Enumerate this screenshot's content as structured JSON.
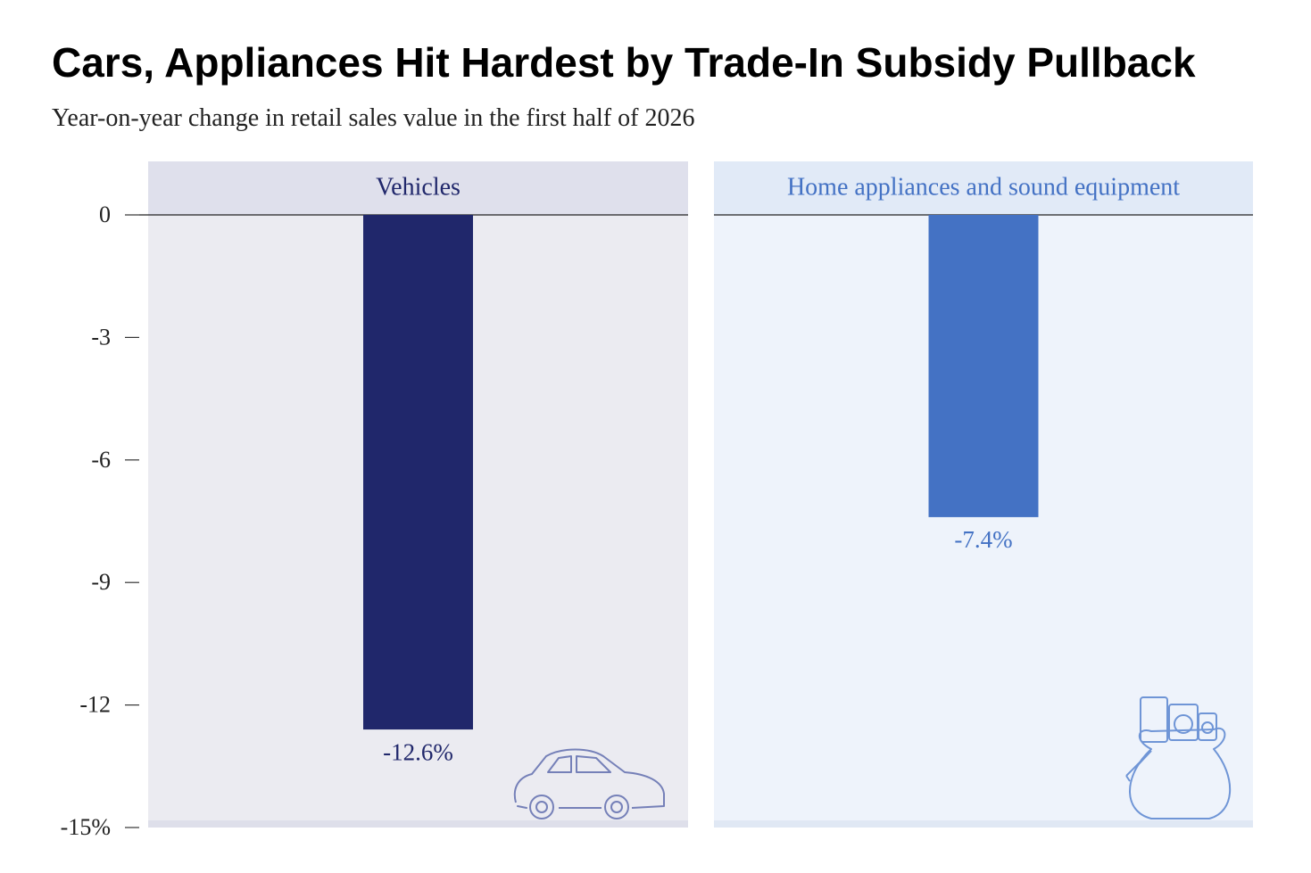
{
  "chart_data": {
    "type": "bar",
    "title": "Cars, Appliances Hit Hardest by Trade-In Subsidy Pullback",
    "subtitle": "Year-on-year change in retail sales value in the first half of 2026",
    "categories": [
      "Vehicles",
      "Home appliances and sound equipment"
    ],
    "values": [
      -12.6,
      -7.4
    ],
    "value_labels": [
      "-12.6%",
      "-7.4%"
    ],
    "colors": [
      "#20276b",
      "#4472c4"
    ],
    "ylim": [
      -15,
      0
    ],
    "yticks": [
      0,
      -3,
      -6,
      -9,
      -12,
      {
        "value": -15,
        "label": "-15%"
      }
    ]
  }
}
